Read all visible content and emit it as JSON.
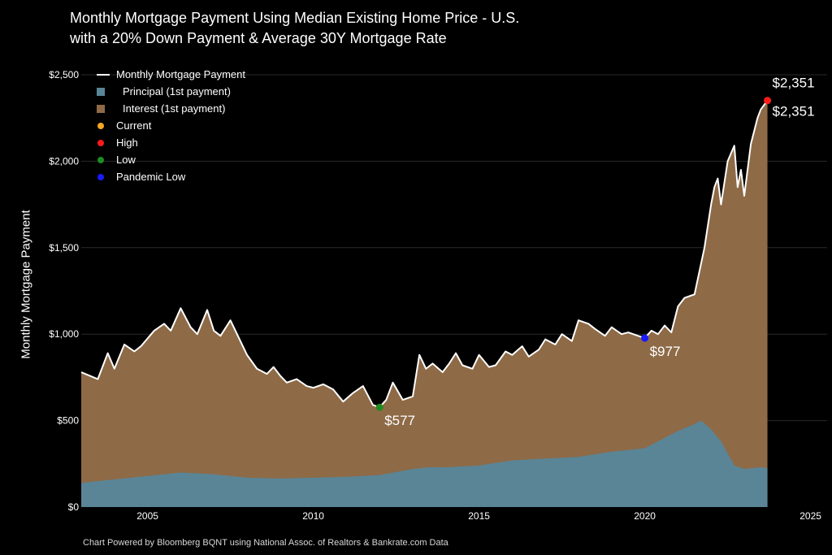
{
  "title_line1": "Monthly Mortgage Payment Using Median Existing Home Price - U.S.",
  "title_line2": "with a 20% Down Payment & Average 30Y Mortgage Rate",
  "footer": "Chart Powered by Bloomberg BQNT using National Assoc. of Realtors & Bankrate.com Data",
  "colors": {
    "background": "#000000",
    "payment_line": "#ffffff",
    "principal": "#5a8596",
    "interest": "#8e6a47",
    "current": "#f5a623",
    "high": "#ff1a1a",
    "low": "#1e8c1e",
    "pandemic_low": "#1a1aff",
    "grid": "#2a2a2a"
  },
  "chart_data": {
    "type": "area",
    "ylabel": "Monthly Mortgage Payment",
    "xlim": [
      2003.0,
      2025.5
    ],
    "ylim": [
      0,
      2500
    ],
    "x_ticks": [
      2005,
      2010,
      2015,
      2020,
      2025
    ],
    "x_tick_labels": [
      "2005",
      "2010",
      "2015",
      "2020",
      "2025"
    ],
    "y_ticks": [
      0,
      500,
      1000,
      1500,
      2000,
      2500
    ],
    "y_tick_labels": [
      "$0",
      "$500",
      "$1,000",
      "$1,500",
      "$2,000",
      "$2,500"
    ],
    "grid": "horizontal",
    "legend_position": "top-left",
    "legend": [
      {
        "label": "Monthly Mortgage Payment",
        "kind": "line",
        "color": "#ffffff"
      },
      {
        "label": "Principal (1st payment)",
        "kind": "square",
        "color": "#5a8596"
      },
      {
        "label": "Interest (1st payment)",
        "kind": "square",
        "color": "#8e6a47"
      },
      {
        "label": "Current",
        "kind": "dot",
        "color": "#f5a623"
      },
      {
        "label": "High",
        "kind": "dot",
        "color": "#ff1a1a"
      },
      {
        "label": "Low",
        "kind": "dot",
        "color": "#1e8c1e"
      },
      {
        "label": "Pandemic Low",
        "kind": "dot",
        "color": "#1a1aff"
      }
    ],
    "series": [
      {
        "name": "Monthly Mortgage Payment",
        "x": [
          2003.0,
          2003.5,
          2003.8,
          2004.0,
          2004.3,
          2004.6,
          2004.8,
          2005.2,
          2005.5,
          2005.7,
          2006.0,
          2006.3,
          2006.5,
          2006.8,
          2007.0,
          2007.2,
          2007.5,
          2007.8,
          2008.0,
          2008.3,
          2008.6,
          2008.8,
          2009.0,
          2009.2,
          2009.5,
          2009.8,
          2010.0,
          2010.3,
          2010.6,
          2010.9,
          2011.2,
          2011.5,
          2011.8,
          2012.0,
          2012.2,
          2012.4,
          2012.7,
          2013.0,
          2013.2,
          2013.4,
          2013.6,
          2013.9,
          2014.1,
          2014.3,
          2014.5,
          2014.8,
          2015.0,
          2015.3,
          2015.5,
          2015.8,
          2016.0,
          2016.3,
          2016.5,
          2016.8,
          2017.0,
          2017.3,
          2017.5,
          2017.8,
          2018.0,
          2018.3,
          2018.5,
          2018.8,
          2019.0,
          2019.3,
          2019.5,
          2019.8,
          2020.0,
          2020.2,
          2020.4,
          2020.6,
          2020.8,
          2021.0,
          2021.2,
          2021.5,
          2021.8,
          2022.0,
          2022.1,
          2022.2,
          2022.3,
          2022.5,
          2022.7,
          2022.8,
          2022.9,
          2023.0,
          2023.2,
          2023.4,
          2023.5,
          2023.7
        ],
        "values": [
          780,
          740,
          890,
          800,
          940,
          900,
          930,
          1020,
          1060,
          1020,
          1150,
          1040,
          1000,
          1140,
          1020,
          990,
          1080,
          960,
          880,
          800,
          770,
          810,
          760,
          720,
          740,
          700,
          690,
          710,
          680,
          610,
          660,
          700,
          590,
          577,
          620,
          720,
          620,
          640,
          880,
          800,
          830,
          780,
          830,
          890,
          820,
          800,
          880,
          810,
          820,
          900,
          880,
          930,
          870,
          910,
          970,
          940,
          1000,
          960,
          1080,
          1060,
          1030,
          990,
          1040,
          1000,
          1010,
          990,
          977,
          1020,
          1000,
          1050,
          1010,
          1160,
          1210,
          1230,
          1500,
          1750,
          1850,
          1900,
          1750,
          2000,
          2090,
          1850,
          1950,
          1800,
          2100,
          2250,
          2300,
          2351
        ]
      },
      {
        "name": "Principal (1st payment)",
        "x": [
          2003.0,
          2004.0,
          2005.0,
          2006.0,
          2007.0,
          2008.0,
          2009.0,
          2010.0,
          2011.0,
          2012.0,
          2013.0,
          2013.5,
          2014.0,
          2015.0,
          2016.0,
          2017.0,
          2018.0,
          2019.0,
          2020.0,
          2020.5,
          2021.0,
          2021.5,
          2021.7,
          2022.0,
          2022.3,
          2022.7,
          2023.0,
          2023.5,
          2023.7
        ],
        "values": [
          140,
          160,
          180,
          200,
          190,
          170,
          165,
          170,
          175,
          185,
          220,
          230,
          230,
          240,
          270,
          280,
          290,
          320,
          340,
          390,
          440,
          480,
          500,
          450,
          380,
          240,
          220,
          230,
          225
        ]
      }
    ],
    "annotations": [
      {
        "label": "$2,351",
        "x": 2023.7,
        "y": 2351,
        "marker": "high",
        "color": "#ff1a1a"
      },
      {
        "label": "$2,351",
        "x": 2023.7,
        "y": 2351,
        "marker": "current",
        "color": "#f5a623"
      },
      {
        "label": "$577",
        "x": 2012.0,
        "y": 577,
        "marker": "low",
        "color": "#1e8c1e"
      },
      {
        "label": "$977",
        "x": 2020.0,
        "y": 977,
        "marker": "pandemic_low",
        "color": "#1a1aff"
      }
    ]
  }
}
